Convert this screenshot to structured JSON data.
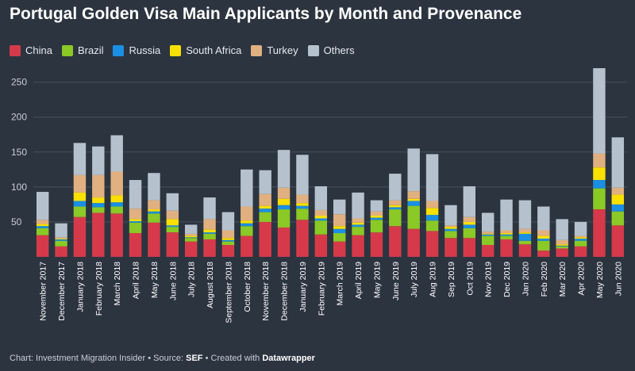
{
  "title": "Portugal Golden Visa Main Applicants by Month and Provenance",
  "footer": {
    "chart_label": "Chart: Investment Migration Insider",
    "sep1": " • ",
    "source_prefix": "Source: ",
    "source": "SEF",
    "sep2": " • ",
    "created_prefix": "Created with ",
    "tool": "Datawrapper"
  },
  "chart_data": {
    "type": "bar",
    "stacked": true,
    "title": "Portugal Golden Visa Main Applicants by Month and Provenance",
    "xlabel": "",
    "ylabel": "",
    "ylim": [
      0,
      270
    ],
    "yticks": [
      50,
      100,
      150,
      200,
      250
    ],
    "grid": true,
    "legend_position": "top-left",
    "categories": [
      "November 2017",
      "December 2017",
      "January 2018",
      "February 2018",
      "March 2018",
      "April 2018",
      "May 2018",
      "June 2018",
      "July 2018",
      "August 2018",
      "September 2018",
      "October 2018",
      "November 2018",
      "December 2018",
      "January 2019",
      "February 2019",
      "March 2019",
      "April 2019",
      "May 2019",
      "June 2019",
      "July 2019",
      "Aug 2019",
      "Sep 2019",
      "Oct 2019",
      "Nov 2019",
      "Dec 2019",
      "Jan 2020",
      "Feb 2020",
      "Mar 2020",
      "Apr 2020",
      "May 2020",
      "Jun 2020"
    ],
    "series": [
      {
        "name": "China",
        "color": "#d63a4a",
        "values": [
          31,
          15,
          57,
          63,
          62,
          34,
          49,
          35,
          22,
          25,
          17,
          30,
          50,
          42,
          53,
          32,
          22,
          31,
          35,
          44,
          40,
          37,
          27,
          27,
          17,
          25,
          18,
          9,
          12,
          15,
          68,
          45
        ]
      },
      {
        "name": "Brazil",
        "color": "#8ac926",
        "values": [
          10,
          8,
          15,
          8,
          10,
          15,
          13,
          8,
          5,
          8,
          5,
          14,
          14,
          26,
          16,
          20,
          12,
          12,
          18,
          24,
          33,
          15,
          10,
          14,
          13,
          5,
          5,
          14,
          3,
          8,
          30,
          20
        ]
      },
      {
        "name": "Russia",
        "color": "#1a8fe3",
        "values": [
          3,
          2,
          8,
          6,
          6,
          2,
          3,
          2,
          1,
          2,
          2,
          4,
          5,
          6,
          4,
          3,
          6,
          3,
          3,
          3,
          7,
          8,
          3,
          5,
          2,
          2,
          10,
          3,
          1,
          3,
          12,
          10
        ]
      },
      {
        "name": "South Africa",
        "color": "#f9e000",
        "values": [
          3,
          1,
          12,
          8,
          10,
          3,
          3,
          9,
          2,
          4,
          3,
          4,
          4,
          9,
          4,
          4,
          4,
          3,
          3,
          3,
          3,
          10,
          3,
          4,
          1,
          2,
          2,
          4,
          2,
          2,
          18,
          14
        ]
      },
      {
        "name": "Turkey",
        "color": "#e0b080",
        "values": [
          6,
          2,
          25,
          32,
          34,
          15,
          13,
          12,
          3,
          15,
          11,
          20,
          17,
          16,
          12,
          8,
          17,
          6,
          6,
          7,
          11,
          10,
          2,
          7,
          3,
          4,
          5,
          8,
          6,
          2,
          20,
          10
        ]
      },
      {
        "name": "Others",
        "color": "#b5c2ce",
        "values": [
          40,
          20,
          46,
          41,
          52,
          41,
          39,
          25,
          13,
          31,
          26,
          53,
          34,
          54,
          57,
          34,
          21,
          37,
          16,
          38,
          61,
          67,
          29,
          44,
          27,
          44,
          41,
          34,
          30,
          20,
          122,
          72
        ]
      }
    ]
  }
}
